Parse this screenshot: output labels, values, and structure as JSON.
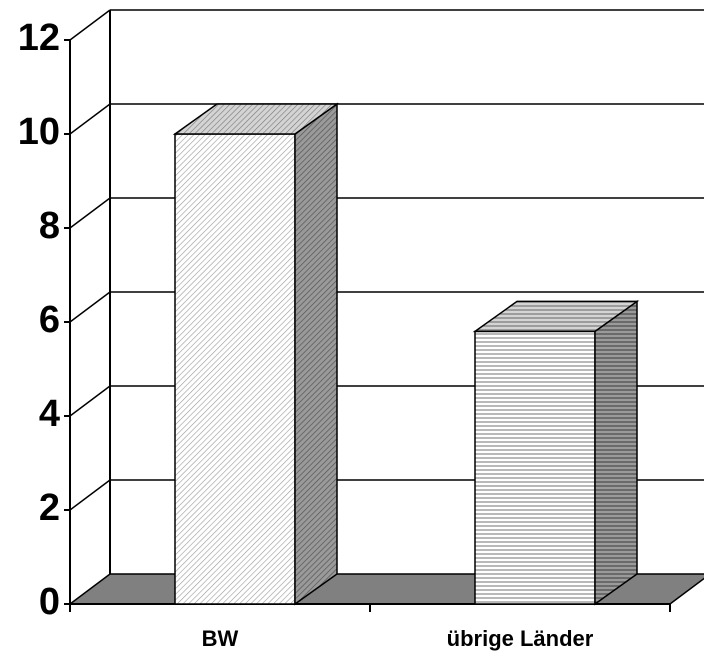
{
  "chart_data": {
    "type": "bar",
    "style": "3d",
    "categories": [
      "BW",
      "übrige Länder"
    ],
    "values": [
      10,
      5.8
    ],
    "ylim": [
      0,
      12
    ],
    "yticks": [
      0,
      2,
      4,
      6,
      8,
      10,
      12
    ],
    "grid": true,
    "legend": "none",
    "colors": {
      "floor": "#808080",
      "bar_front": "#ffffff",
      "bar_top": "#c0c0c0",
      "bar_side": "#808080",
      "line": "#000000"
    }
  }
}
